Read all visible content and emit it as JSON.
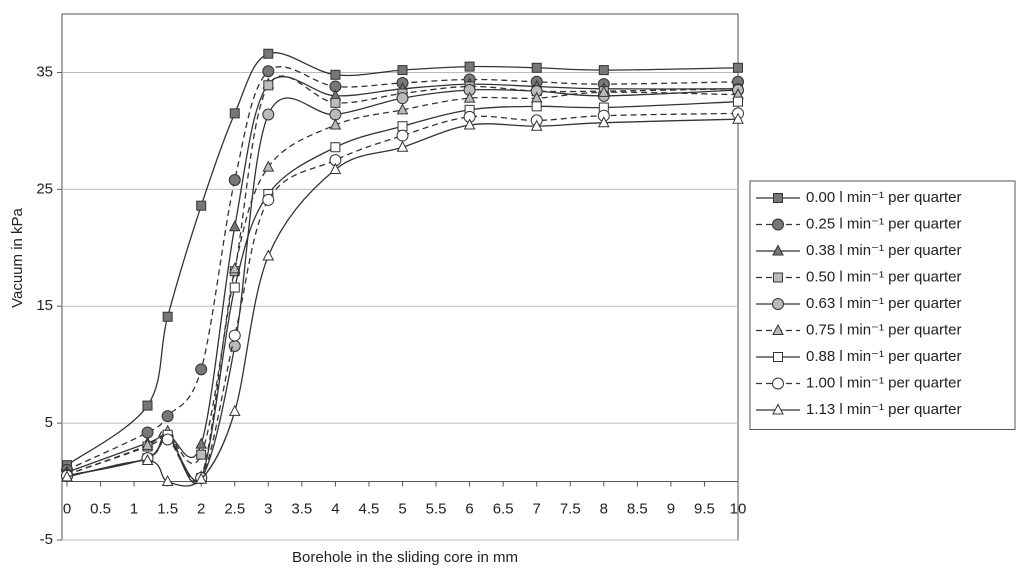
{
  "chart_data": {
    "type": "line",
    "x_label": "Borehole in the sliding core in mm",
    "y_label": "Vacuum in kPa",
    "x": [
      0,
      1.2,
      1.5,
      2,
      2.5,
      3,
      4,
      5,
      6,
      7,
      8,
      10
    ],
    "xlim": [
      0,
      10
    ],
    "xticks": [
      0,
      0.5,
      1,
      1.5,
      2,
      2.5,
      3,
      3.5,
      4,
      4.5,
      5,
      5.5,
      6,
      6.5,
      7,
      7.5,
      8,
      8.5,
      9,
      9.5,
      10
    ],
    "ylim": [
      -5,
      40
    ],
    "yticks": [
      -5,
      5,
      15,
      25,
      35
    ],
    "grid": true,
    "legend": "right",
    "series": [
      {
        "name": "0.00 l min⁻¹ per quarter",
        "color": "#333333",
        "marker": "square",
        "marker_fill": "#777777",
        "dashed": false,
        "values": [
          1.4,
          6.5,
          14.1,
          23.6,
          31.5,
          36.6,
          34.8,
          35.2,
          35.5,
          35.4,
          35.2,
          35.4
        ]
      },
      {
        "name": "0.25 l min⁻¹ per quarter",
        "color": "#333333",
        "marker": "circle",
        "marker_fill": "#777777",
        "dashed": true,
        "values": [
          1.0,
          4.2,
          5.6,
          9.6,
          25.8,
          35.1,
          33.8,
          34.1,
          34.4,
          34.2,
          34.0,
          34.2
        ]
      },
      {
        "name": "0.38 l min⁻¹ per quarter",
        "color": "#333333",
        "marker": "triangle",
        "marker_fill": "#777777",
        "dashed": false,
        "values": [
          0.8,
          3.3,
          4.0,
          3.2,
          21.8,
          34.0,
          33.0,
          33.6,
          34.0,
          33.8,
          33.6,
          33.6
        ]
      },
      {
        "name": "0.50 l min⁻¹ per quarter",
        "color": "#333333",
        "marker": "square",
        "marker_fill": "#bbbbbb",
        "dashed": true,
        "values": [
          0.6,
          3.0,
          3.9,
          2.3,
          18.0,
          33.9,
          32.4,
          33.2,
          33.8,
          33.4,
          33.4,
          33.6
        ]
      },
      {
        "name": "0.63 l min⁻¹ per quarter",
        "color": "#333333",
        "marker": "circle",
        "marker_fill": "#bbbbbb",
        "dashed": false,
        "values": [
          0.5,
          2.0,
          3.8,
          0.3,
          11.6,
          31.4,
          31.4,
          32.8,
          33.5,
          33.4,
          33.0,
          33.5
        ]
      },
      {
        "name": "0.75 l min⁻¹ per quarter",
        "color": "#333333",
        "marker": "triangle",
        "marker_fill": "#bbbbbb",
        "dashed": true,
        "values": [
          0.6,
          3.1,
          4.3,
          0.4,
          18.2,
          26.9,
          30.5,
          31.8,
          32.8,
          32.8,
          33.3,
          33.1
        ]
      },
      {
        "name": "0.88 l min⁻¹ per quarter",
        "color": "#333333",
        "marker": "square",
        "marker_fill": "#ffffff",
        "dashed": false,
        "values": [
          0.5,
          2.0,
          4.0,
          0.3,
          16.6,
          24.6,
          28.6,
          30.4,
          31.8,
          32.1,
          32.0,
          32.5
        ]
      },
      {
        "name": "1.00 l min⁻¹ per quarter",
        "color": "#333333",
        "marker": "circle",
        "marker_fill": "#ffffff",
        "dashed": true,
        "values": [
          0.5,
          2.0,
          3.6,
          0.3,
          12.5,
          24.1,
          27.5,
          29.6,
          31.2,
          30.9,
          31.3,
          31.5
        ]
      },
      {
        "name": "1.13 l min⁻¹ per quarter",
        "color": "#333333",
        "marker": "triangle",
        "marker_fill": "#ffffff",
        "dashed": false,
        "values": [
          0.4,
          1.8,
          0.0,
          0.2,
          6.0,
          19.3,
          26.7,
          28.6,
          30.5,
          30.4,
          30.7,
          31.0
        ]
      }
    ]
  }
}
